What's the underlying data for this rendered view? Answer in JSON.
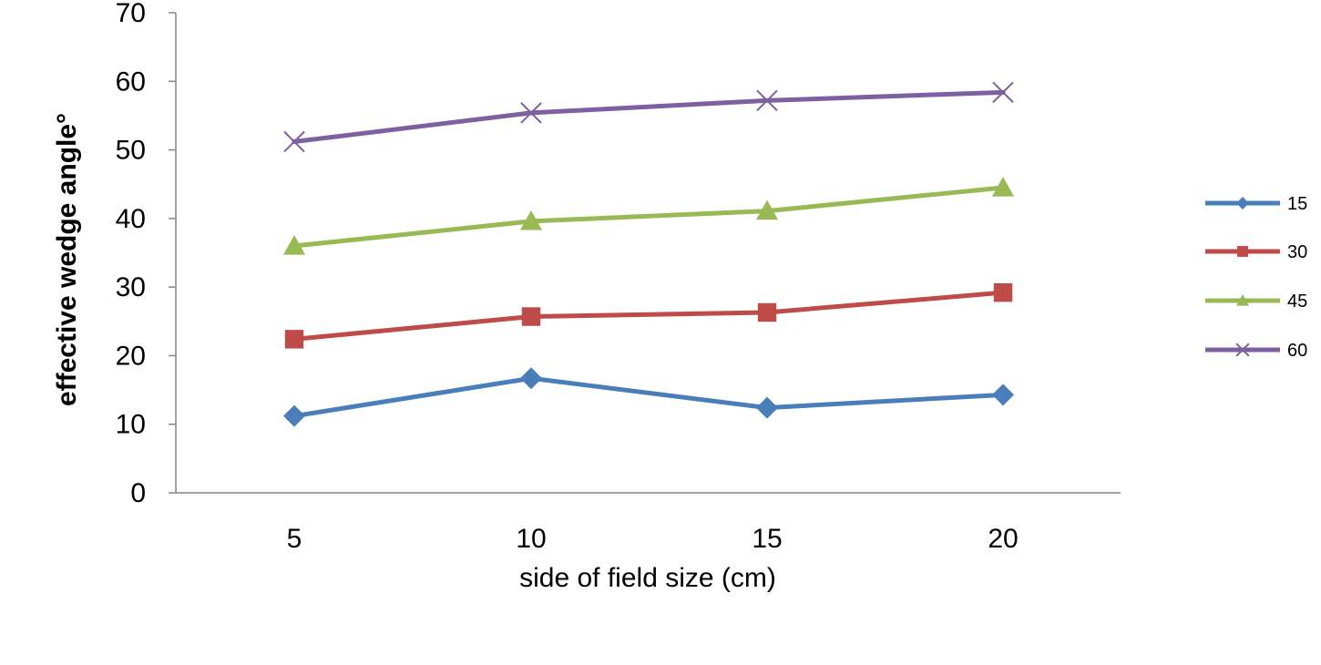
{
  "chart_data": {
    "type": "line",
    "title": "",
    "xlabel": "side of field size (cm)",
    "ylabel": "effective wedge angle°",
    "categories": [
      "5",
      "10",
      "15",
      "20"
    ],
    "ylim": [
      0,
      70
    ],
    "y_ticks": [
      "0",
      "10",
      "20",
      "30",
      "40",
      "50",
      "60",
      "70"
    ],
    "grid": false,
    "legend_position": "right",
    "series": [
      {
        "name": "15",
        "values": [
          11.2,
          16.7,
          12.4,
          14.3
        ],
        "color": "#4a7ebb",
        "marker": "diamond"
      },
      {
        "name": "30",
        "values": [
          22.4,
          25.7,
          26.3,
          29.2
        ],
        "color": "#be4b48",
        "marker": "square"
      },
      {
        "name": "45",
        "values": [
          36.0,
          39.6,
          41.1,
          44.5
        ],
        "color": "#98b954",
        "marker": "triangle"
      },
      {
        "name": "60",
        "values": [
          51.2,
          55.4,
          57.2,
          58.4
        ],
        "color": "#7d60a0",
        "marker": "x"
      }
    ]
  }
}
